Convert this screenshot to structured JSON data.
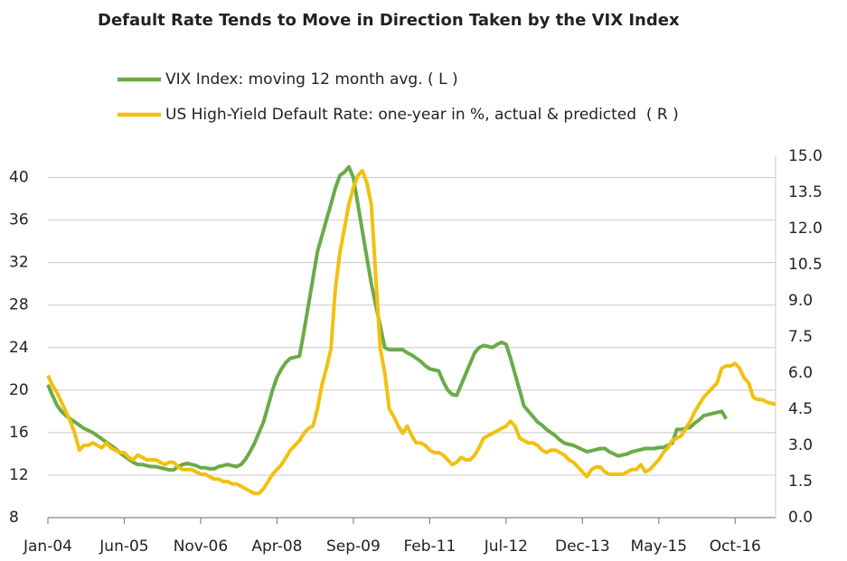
{
  "chart_data": {
    "type": "line",
    "title": "Default Rate Tends to Move in Direction Taken by the VIX Index",
    "x": [
      "2004-01",
      "2004-02",
      "2004-03",
      "2004-04",
      "2004-05",
      "2004-06",
      "2004-07",
      "2004-08",
      "2004-09",
      "2004-10",
      "2004-11",
      "2004-12",
      "2005-01",
      "2005-02",
      "2005-03",
      "2005-04",
      "2005-05",
      "2005-06",
      "2005-07",
      "2005-08",
      "2005-09",
      "2005-10",
      "2005-11",
      "2005-12",
      "2006-01",
      "2006-02",
      "2006-03",
      "2006-04",
      "2006-05",
      "2006-06",
      "2006-07",
      "2006-08",
      "2006-09",
      "2006-10",
      "2006-11",
      "2006-12",
      "2007-01",
      "2007-02",
      "2007-03",
      "2007-04",
      "2007-05",
      "2007-06",
      "2007-07",
      "2007-08",
      "2007-09",
      "2007-10",
      "2007-11",
      "2007-12",
      "2008-01",
      "2008-02",
      "2008-03",
      "2008-04",
      "2008-05",
      "2008-06",
      "2008-07",
      "2008-08",
      "2008-09",
      "2008-10",
      "2008-11",
      "2008-12",
      "2009-01",
      "2009-02",
      "2009-03",
      "2009-04",
      "2009-05",
      "2009-06",
      "2009-07",
      "2009-08",
      "2009-09",
      "2009-10",
      "2009-11",
      "2009-12",
      "2010-01",
      "2010-02",
      "2010-03",
      "2010-04",
      "2010-05",
      "2010-06",
      "2010-07",
      "2010-08",
      "2010-09",
      "2010-10",
      "2010-11",
      "2010-12",
      "2011-01",
      "2011-02",
      "2011-03",
      "2011-04",
      "2011-05",
      "2011-06",
      "2011-07",
      "2011-08",
      "2011-09",
      "2011-10",
      "2011-11",
      "2011-12",
      "2012-01",
      "2012-02",
      "2012-03",
      "2012-04",
      "2012-05",
      "2012-06",
      "2012-07",
      "2012-08",
      "2012-09",
      "2012-10",
      "2012-11",
      "2012-12",
      "2013-01",
      "2013-02",
      "2013-03",
      "2013-04",
      "2013-05",
      "2013-06",
      "2013-07",
      "2013-08",
      "2013-09",
      "2013-10",
      "2013-11",
      "2013-12",
      "2014-01",
      "2014-02",
      "2014-03",
      "2014-04",
      "2014-05",
      "2014-06",
      "2014-07",
      "2014-08",
      "2014-09",
      "2014-10",
      "2014-11",
      "2014-12",
      "2015-01",
      "2015-02",
      "2015-03",
      "2015-04",
      "2015-05",
      "2015-06",
      "2015-07",
      "2015-08",
      "2015-09",
      "2015-10",
      "2015-11",
      "2015-12",
      "2016-01",
      "2016-02",
      "2016-03",
      "2016-04",
      "2016-05",
      "2016-06",
      "2016-07",
      "2016-08",
      "2016-09",
      "2016-10",
      "2016-11",
      "2016-12",
      "2017-01",
      "2017-02",
      "2017-03",
      "2017-04",
      "2017-05",
      "2017-06",
      "2017-07"
    ],
    "xlim": [
      "2004-01",
      "2017-07"
    ],
    "xticks": [
      {
        "value": "2004-01",
        "label": "Jan-04"
      },
      {
        "value": "2005-06",
        "label": "Jun-05"
      },
      {
        "value": "2006-11",
        "label": "Nov-06"
      },
      {
        "value": "2008-04",
        "label": "Apr-08"
      },
      {
        "value": "2009-09",
        "label": "Sep-09"
      },
      {
        "value": "2011-02",
        "label": "Feb-11"
      },
      {
        "value": "2012-07",
        "label": "Jul-12"
      },
      {
        "value": "2013-12",
        "label": "Dec-13"
      },
      {
        "value": "2015-05",
        "label": "May-15"
      },
      {
        "value": "2016-10",
        "label": "Oct-16"
      }
    ],
    "ylim": [
      8,
      42
    ],
    "yticks": [
      8,
      12,
      16,
      20,
      24,
      28,
      32,
      36,
      40
    ],
    "y2lim": [
      0,
      15
    ],
    "y2ticks": [
      {
        "value": 0,
        "label": "0.0"
      },
      1.5,
      {
        "value": 3,
        "label": "3.0"
      },
      4.5,
      {
        "value": 6,
        "label": "6.0"
      },
      7.5,
      {
        "value": 9,
        "label": "9.0"
      },
      10.5,
      {
        "value": 12,
        "label": "12.0"
      },
      13.5,
      {
        "value": 15,
        "label": "15.0"
      }
    ],
    "grid": true,
    "series": [
      {
        "name": "VIX Index: moving 12 month avg. ( L )",
        "color": "#6aab48",
        "axis": "y",
        "values": [
          20.5,
          19.5,
          18.6,
          18.0,
          17.6,
          17.3,
          17.0,
          16.7,
          16.4,
          16.2,
          16.0,
          15.7,
          15.4,
          15.1,
          14.8,
          14.5,
          14.1,
          13.8,
          13.5,
          13.2,
          13.0,
          13.0,
          12.9,
          12.8,
          12.8,
          12.7,
          12.6,
          12.5,
          12.5,
          12.8,
          13.0,
          13.1,
          13.0,
          12.9,
          12.7,
          12.7,
          12.6,
          12.6,
          12.8,
          12.9,
          13.0,
          12.9,
          12.8,
          13.0,
          13.5,
          14.2,
          15.0,
          16.0,
          17.0,
          18.5,
          20.0,
          21.2,
          22.0,
          22.6,
          23.0,
          23.1,
          23.2,
          25.5,
          28.0,
          30.5,
          33.0,
          34.5,
          36.0,
          37.5,
          39.0,
          40.2,
          40.5,
          41.0,
          40.0,
          37.5,
          35.0,
          32.5,
          30.0,
          28.0,
          26.0,
          24.0,
          23.8,
          23.8,
          23.8,
          23.8,
          23.5,
          23.3,
          23.0,
          22.7,
          22.3,
          22.0,
          21.9,
          21.8,
          20.8,
          20.0,
          19.6,
          19.5,
          20.5,
          21.5,
          22.5,
          23.5,
          24.0,
          24.2,
          24.1,
          24.0,
          24.3,
          24.5,
          24.3,
          23.0,
          21.5,
          20.0,
          18.5,
          18.0,
          17.5,
          17.0,
          16.7,
          16.3,
          16.0,
          15.7,
          15.3,
          15.0,
          14.9,
          14.8,
          14.6,
          14.4,
          14.2,
          14.3,
          14.4,
          14.5,
          14.5,
          14.2,
          14.0,
          13.8,
          13.9,
          14.0,
          14.2,
          14.3,
          14.4,
          14.5,
          14.5,
          14.5,
          14.6,
          14.6,
          14.8,
          15.0,
          16.3,
          16.3,
          16.4,
          16.5,
          16.9,
          17.2,
          17.6,
          17.7,
          17.8,
          17.9,
          18.0,
          17.3,
          null,
          null,
          null,
          null,
          null,
          null,
          null,
          null,
          null,
          null,
          null
        ]
      },
      {
        "name": "US High-Yield Default Rate: one-year in %, actual & predicted  ( R )",
        "color": "#f2c010",
        "axis": "y2",
        "values": [
          5.9,
          5.5,
          5.2,
          4.8,
          4.4,
          4.0,
          3.5,
          2.8,
          3.0,
          3.0,
          3.1,
          3.0,
          2.9,
          3.1,
          2.9,
          2.8,
          2.7,
          2.7,
          2.5,
          2.4,
          2.6,
          2.5,
          2.4,
          2.4,
          2.4,
          2.3,
          2.2,
          2.3,
          2.3,
          2.1,
          2.0,
          2.0,
          2.0,
          1.9,
          1.8,
          1.8,
          1.7,
          1.6,
          1.6,
          1.5,
          1.5,
          1.4,
          1.4,
          1.3,
          1.2,
          1.1,
          1.0,
          1.0,
          1.2,
          1.5,
          1.8,
          2.0,
          2.2,
          2.5,
          2.8,
          3.0,
          3.2,
          3.5,
          3.7,
          3.8,
          4.5,
          5.5,
          6.2,
          7.0,
          9.5,
          11.0,
          12.0,
          13.0,
          13.7,
          14.2,
          14.4,
          13.9,
          13.0,
          10.0,
          7.0,
          6.0,
          4.5,
          4.2,
          3.8,
          3.5,
          3.8,
          3.4,
          3.1,
          3.1,
          3.0,
          2.8,
          2.7,
          2.7,
          2.6,
          2.4,
          2.2,
          2.3,
          2.5,
          2.4,
          2.4,
          2.6,
          2.9,
          3.3,
          3.4,
          3.5,
          3.6,
          3.7,
          3.8,
          4.0,
          3.8,
          3.3,
          3.2,
          3.1,
          3.1,
          3.0,
          2.8,
          2.7,
          2.8,
          2.8,
          2.7,
          2.6,
          2.4,
          2.3,
          2.1,
          1.9,
          1.7,
          2.0,
          2.1,
          2.1,
          1.9,
          1.8,
          1.8,
          1.8,
          1.8,
          1.9,
          2.0,
          2.0,
          2.2,
          1.9,
          2.0,
          2.2,
          2.4,
          2.7,
          2.9,
          3.2,
          3.3,
          3.4,
          3.7,
          4.0,
          4.4,
          4.7,
          5.0,
          5.2,
          5.4,
          5.6,
          6.2,
          6.3,
          6.3,
          6.4,
          6.2,
          5.8,
          5.6,
          5.0,
          4.9,
          4.9,
          4.8,
          4.75,
          4.7
        ]
      }
    ]
  }
}
